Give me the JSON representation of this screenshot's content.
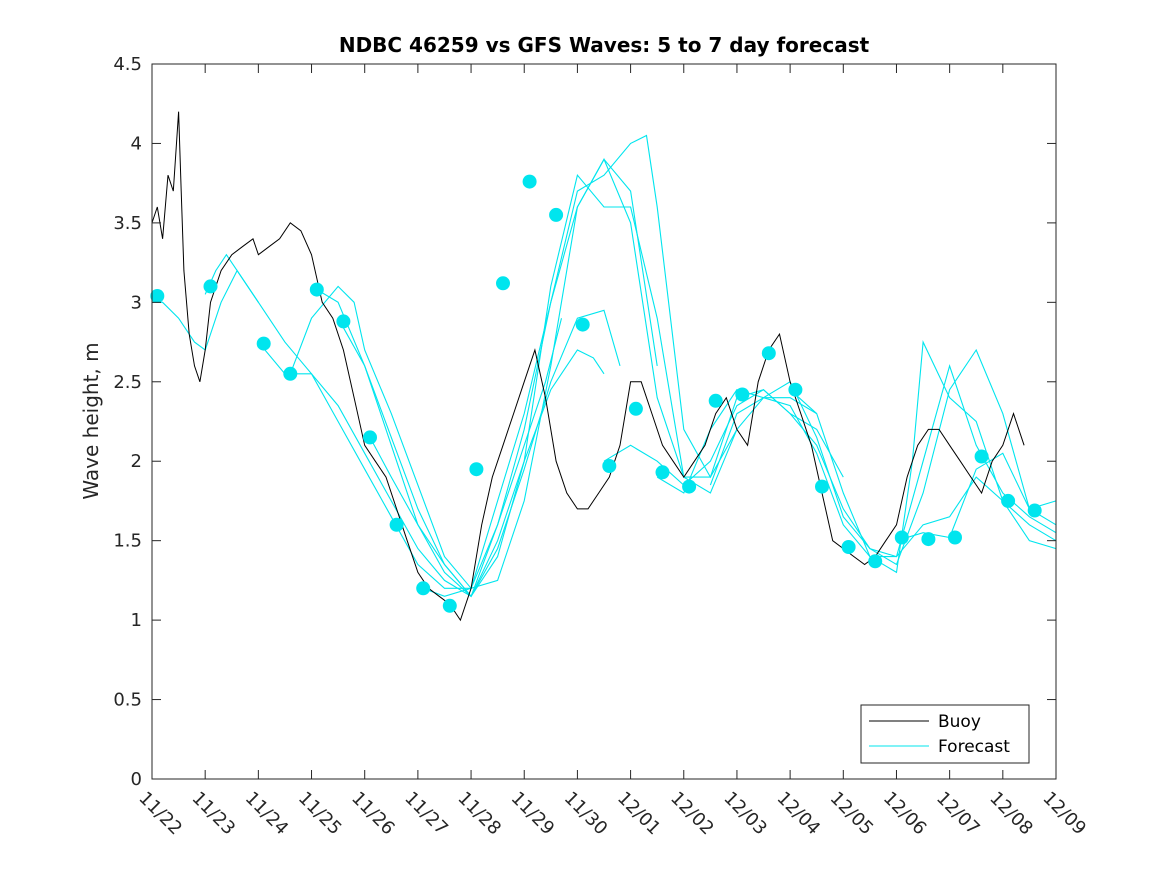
{
  "chart_data": {
    "type": "line",
    "title": "NDBC 46259 vs GFS Waves: 5 to 7 day forecast",
    "xlabel": "",
    "ylabel": "Wave height, m",
    "xlim": [
      0,
      17
    ],
    "ylim": [
      0,
      4.5
    ],
    "grid": false,
    "legend_position": "bottom-right",
    "x_tick_labels": [
      "11/22",
      "11/23",
      "11/24",
      "11/25",
      "11/26",
      "11/27",
      "11/28",
      "11/29",
      "11/30",
      "12/01",
      "12/02",
      "12/03",
      "12/04",
      "12/05",
      "12/06",
      "12/07",
      "12/08",
      "12/09"
    ],
    "y_ticks": [
      0,
      0.5,
      1,
      1.5,
      2,
      2.5,
      3,
      3.5,
      4,
      4.5
    ],
    "legend": [
      {
        "label": "Buoy",
        "color": "#000000"
      },
      {
        "label": "Forecast",
        "color": "#00e5ee"
      }
    ],
    "colors": {
      "buoy": "#000000",
      "forecast": "#00e5ee"
    },
    "buoy_series": {
      "name": "Buoy",
      "x": [
        0,
        0.1,
        0.2,
        0.3,
        0.4,
        0.5,
        0.55,
        0.6,
        0.7,
        0.8,
        0.9,
        1.0,
        1.1,
        1.3,
        1.5,
        1.7,
        1.9,
        2.0,
        2.2,
        2.4,
        2.6,
        2.8,
        3.0,
        3.2,
        3.4,
        3.6,
        3.8,
        4.0,
        4.2,
        4.4,
        4.6,
        4.8,
        5.0,
        5.2,
        5.4,
        5.6,
        5.8,
        6.0,
        6.2,
        6.4,
        6.6,
        6.8,
        7.0,
        7.2,
        7.4,
        7.6,
        7.8,
        8.0,
        8.2,
        8.4,
        8.6,
        8.8,
        9.0,
        9.2,
        9.4,
        9.6,
        9.8,
        10.0,
        10.2,
        10.4,
        10.6,
        10.8,
        11.0,
        11.2,
        11.4,
        11.6,
        11.8,
        12.0,
        12.2,
        12.4,
        12.6,
        12.8,
        13.0,
        13.2,
        13.4,
        13.6,
        13.8,
        14.0,
        14.2,
        14.4,
        14.6,
        14.8,
        15.0,
        15.2,
        15.4,
        15.6,
        15.8,
        16.0,
        16.2,
        16.4
      ],
      "values": [
        3.5,
        3.6,
        3.4,
        3.8,
        3.7,
        4.2,
        3.7,
        3.2,
        2.8,
        2.6,
        2.5,
        2.7,
        3.0,
        3.2,
        3.3,
        3.35,
        3.4,
        3.3,
        3.35,
        3.4,
        3.5,
        3.45,
        3.3,
        3.0,
        2.9,
        2.7,
        2.4,
        2.1,
        2.0,
        1.9,
        1.7,
        1.5,
        1.3,
        1.2,
        1.15,
        1.1,
        1.0,
        1.2,
        1.6,
        1.9,
        2.1,
        2.3,
        2.5,
        2.7,
        2.4,
        2.0,
        1.8,
        1.7,
        1.7,
        1.8,
        1.9,
        2.1,
        2.5,
        2.5,
        2.3,
        2.1,
        2.0,
        1.9,
        2.0,
        2.1,
        2.3,
        2.4,
        2.2,
        2.1,
        2.5,
        2.7,
        2.8,
        2.5,
        2.3,
        2.1,
        1.8,
        1.5,
        1.45,
        1.4,
        1.35,
        1.4,
        1.5,
        1.6,
        1.9,
        2.1,
        2.2,
        2.2,
        2.1,
        2.0,
        1.9,
        1.8,
        2.0,
        2.1,
        2.3,
        2.1
      ]
    },
    "forecast_series": [
      {
        "name": "Forecast",
        "x": [
          0.0,
          0.2,
          0.5,
          0.8,
          1.0,
          1.3,
          1.6,
          2.0
        ],
        "values": [
          3.0,
          3.0,
          2.9,
          2.75,
          2.7,
          3.0,
          3.2,
          3.0
        ]
      },
      {
        "name": "Forecast",
        "x": [
          1.0,
          1.2,
          1.4,
          1.6,
          2.0,
          2.5,
          3.0,
          3.5,
          4.0,
          4.5,
          5.0,
          5.5,
          6.0,
          6.5,
          7.0,
          7.4,
          7.7
        ],
        "values": [
          3.05,
          3.2,
          3.3,
          3.2,
          3.0,
          2.75,
          2.55,
          2.25,
          1.95,
          1.65,
          1.35,
          1.2,
          1.2,
          1.6,
          2.1,
          2.5,
          2.9
        ]
      },
      {
        "name": "Forecast",
        "x": [
          2.0,
          2.5,
          3.0,
          3.5,
          4.0,
          4.5,
          5.0,
          5.5,
          6.0,
          6.5,
          7.0,
          7.5,
          8.0,
          8.3,
          8.5
        ],
        "values": [
          2.75,
          2.55,
          2.55,
          2.35,
          2.05,
          1.75,
          1.45,
          1.25,
          1.15,
          1.5,
          2.0,
          2.45,
          2.7,
          2.65,
          2.55
        ]
      },
      {
        "name": "Forecast",
        "x": [
          3.0,
          3.5,
          4.0,
          4.5,
          5.0,
          5.5,
          6.0,
          6.5,
          7.0,
          7.5,
          8.0,
          8.5,
          8.8
        ],
        "values": [
          3.1,
          3.0,
          2.6,
          2.15,
          1.7,
          1.35,
          1.15,
          1.45,
          1.95,
          2.5,
          2.9,
          2.95,
          2.6
        ]
      },
      {
        "name": "Forecast",
        "x": [
          2.6,
          3.0,
          3.5,
          3.8,
          4.0,
          4.5,
          5.0,
          5.5,
          6.0,
          6.5,
          7.0,
          7.5,
          8.0,
          8.5,
          9.0,
          9.5
        ],
        "values": [
          2.55,
          2.9,
          3.1,
          3.0,
          2.7,
          2.3,
          1.85,
          1.4,
          1.2,
          1.25,
          1.75,
          2.6,
          3.6,
          3.9,
          3.7,
          2.6
        ]
      },
      {
        "name": "Forecast",
        "x": [
          3.5,
          4.0,
          4.5,
          5.0,
          5.5,
          6.0,
          6.5,
          7.0,
          7.5,
          8.0,
          8.5,
          9.0,
          9.5,
          10.0,
          10.5,
          11.0
        ],
        "values": [
          2.9,
          2.6,
          2.1,
          1.6,
          1.3,
          1.15,
          1.4,
          2.0,
          3.1,
          3.8,
          3.6,
          3.6,
          2.9,
          1.9,
          1.8,
          2.2
        ]
      },
      {
        "name": "Forecast",
        "x": [
          4.1,
          4.5,
          5.0,
          5.5,
          6.0,
          6.5,
          7.0,
          7.5,
          8.0,
          8.5,
          9.0,
          9.3,
          9.5,
          10.0,
          10.5,
          11.0,
          11.5,
          12.0,
          12.5
        ],
        "values": [
          2.15,
          1.9,
          1.6,
          1.35,
          1.15,
          1.6,
          2.2,
          3.0,
          3.7,
          3.8,
          4.0,
          4.05,
          3.6,
          2.2,
          1.9,
          2.2,
          2.4,
          2.4,
          2.3
        ]
      },
      {
        "name": "Forecast",
        "x": [
          5.1,
          5.5,
          6.0,
          6.5,
          7.0,
          7.5,
          8.0,
          8.5,
          9.0,
          9.5,
          10.0,
          10.5,
          11.0,
          11.5,
          12.0,
          12.5,
          13.0
        ],
        "values": [
          1.2,
          1.15,
          1.2,
          1.75,
          2.3,
          3.0,
          3.6,
          3.9,
          3.5,
          2.4,
          1.9,
          1.9,
          2.4,
          2.45,
          2.3,
          2.2,
          1.9
        ]
      },
      {
        "name": "Forecast",
        "x": [
          8.5,
          9.0,
          9.5,
          10.0,
          10.5,
          11.0,
          11.5,
          12.0,
          12.5,
          13.0,
          13.5,
          14.0,
          14.5,
          15.0,
          15.5,
          16.0,
          16.5,
          17.0
        ],
        "values": [
          2.0,
          2.1,
          2.0,
          1.85,
          2.0,
          2.35,
          2.45,
          2.3,
          2.1,
          1.7,
          1.45,
          1.4,
          2.0,
          2.6,
          2.1,
          1.8,
          1.65,
          1.55
        ]
      },
      {
        "name": "Forecast",
        "x": [
          9.5,
          10.0,
          10.5,
          11.0,
          11.5,
          12.0,
          12.5,
          13.0,
          13.5,
          14.0,
          14.3,
          14.5,
          15.0,
          15.5,
          16.0,
          16.5,
          17.0
        ],
        "values": [
          1.9,
          1.8,
          2.2,
          2.45,
          2.4,
          2.35,
          2.05,
          1.6,
          1.4,
          1.3,
          2.0,
          2.75,
          2.4,
          2.25,
          1.75,
          1.6,
          1.5
        ]
      },
      {
        "name": "Forecast",
        "x": [
          10.5,
          11.0,
          11.5,
          12.0,
          12.5,
          13.0,
          13.5,
          14.0,
          14.5,
          15.0,
          15.5,
          16.0,
          16.5,
          17.0
        ],
        "values": [
          1.85,
          2.3,
          2.4,
          2.5,
          2.15,
          1.65,
          1.45,
          1.35,
          1.8,
          2.45,
          2.7,
          2.3,
          1.7,
          1.6
        ]
      },
      {
        "name": "Forecast",
        "x": [
          12.0,
          12.5,
          13.0,
          13.5,
          14.0,
          14.5,
          15.0,
          15.5,
          16.0,
          16.5,
          17.0
        ],
        "values": [
          2.45,
          2.3,
          1.8,
          1.4,
          1.4,
          1.6,
          1.65,
          1.9,
          1.75,
          1.5,
          1.45
        ]
      },
      {
        "name": "Forecast",
        "x": [
          14.0,
          14.5,
          15.0,
          15.5,
          16.0,
          16.5,
          17.0
        ],
        "values": [
          1.5,
          1.55,
          1.52,
          1.95,
          2.05,
          1.7,
          1.75
        ]
      }
    ],
    "forecast_markers": {
      "x": [
        0.1,
        1.1,
        2.1,
        2.6,
        3.1,
        3.6,
        4.1,
        4.6,
        5.1,
        5.6,
        6.1,
        6.6,
        7.1,
        7.6,
        8.1,
        8.6,
        9.1,
        9.6,
        10.1,
        10.6,
        11.1,
        11.6,
        12.1,
        12.6,
        13.1,
        13.6,
        14.1,
        14.6,
        15.1,
        15.6,
        16.1,
        16.6
      ],
      "values": [
        3.04,
        3.1,
        2.74,
        2.55,
        3.08,
        2.88,
        2.15,
        1.6,
        1.2,
        1.09,
        1.95,
        3.12,
        3.76,
        3.55,
        2.86,
        1.97,
        2.33,
        1.93,
        1.84,
        2.38,
        2.42,
        2.68,
        2.45,
        1.84,
        1.46,
        1.37,
        1.52,
        1.51,
        1.52,
        2.03,
        1.75,
        1.69
      ]
    }
  }
}
